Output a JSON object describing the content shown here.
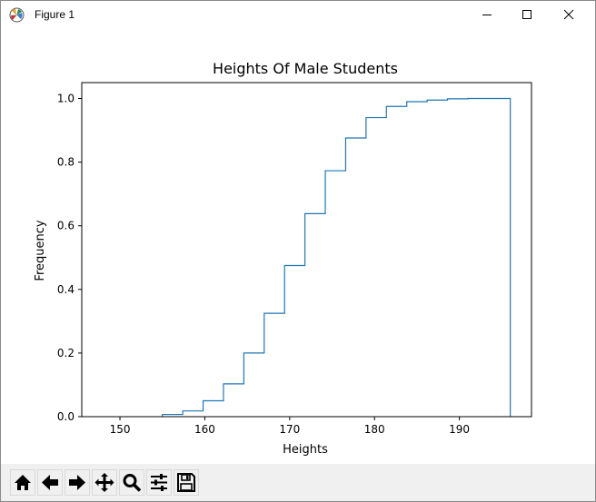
{
  "window": {
    "title": "Figure 1",
    "controls": [
      "minimize-icon",
      "maximize-icon",
      "close-icon"
    ]
  },
  "toolbar": {
    "buttons": [
      {
        "name": "home-button",
        "icon": "home-icon"
      },
      {
        "name": "back-button",
        "icon": "arrow-left-icon"
      },
      {
        "name": "forward-button",
        "icon": "arrow-right-icon"
      },
      {
        "name": "pan-button",
        "icon": "move-icon"
      },
      {
        "name": "zoom-button",
        "icon": "magnifier-icon"
      },
      {
        "name": "configure-subplots-button",
        "icon": "sliders-icon"
      },
      {
        "name": "save-button",
        "icon": "floppy-disk-icon"
      }
    ]
  },
  "chart_data": {
    "type": "step",
    "title": "Heights Of Male Students",
    "xlabel": "Heights",
    "ylabel": "Frequency",
    "xlim": [
      145.5,
      198.5
    ],
    "ylim": [
      0.0,
      1.05
    ],
    "xticks": [
      150,
      160,
      170,
      180,
      190
    ],
    "xtick_labels": [
      "150",
      "160",
      "170",
      "180",
      "190"
    ],
    "yticks": [
      0.0,
      0.2,
      0.4,
      0.6,
      0.8,
      1.0
    ],
    "ytick_labels": [
      "0.0",
      "0.2",
      "0.4",
      "0.6",
      "0.8",
      "1.0"
    ],
    "grid": false,
    "line_color": "#1f77b4",
    "bin_edges": [
      155.0,
      157.4,
      159.8,
      162.2,
      164.6,
      167.0,
      169.4,
      171.8,
      174.2,
      176.6,
      179.0,
      181.4,
      183.8,
      186.2,
      188.6,
      191.0,
      193.4,
      196.0
    ],
    "cumulative": [
      0.007,
      0.018,
      0.05,
      0.103,
      0.2,
      0.325,
      0.475,
      0.638,
      0.773,
      0.876,
      0.94,
      0.975,
      0.99,
      0.995,
      0.999,
      1.0,
      1.0
    ]
  }
}
